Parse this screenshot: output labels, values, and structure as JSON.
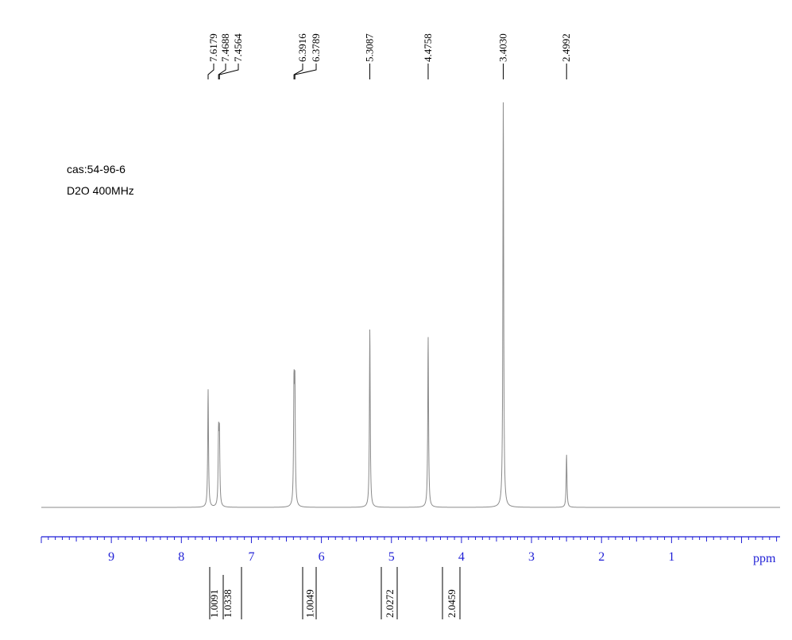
{
  "sample": {
    "cas": "cas:54-96-6",
    "conditions": "D2O 400MHz"
  },
  "chart_data": {
    "type": "line",
    "xlabel": "ppm",
    "xlim": [
      10.0,
      -0.55
    ],
    "x_ticks": [
      9,
      8,
      7,
      6,
      5,
      4,
      3,
      2,
      1
    ],
    "peak_labels": [
      "7.6179",
      "7.4688",
      "7.4564",
      "6.3916",
      "6.3789",
      "5.3087",
      "4.4758",
      "3.4030",
      "2.4992"
    ],
    "peaks": [
      {
        "shift": 7.6179,
        "height": 0.29
      },
      {
        "shift": 7.4688,
        "height": 0.17
      },
      {
        "shift": 7.4564,
        "height": 0.17
      },
      {
        "shift": 6.3916,
        "height": 0.28
      },
      {
        "shift": 6.3789,
        "height": 0.28
      },
      {
        "shift": 5.3087,
        "height": 0.44
      },
      {
        "shift": 4.4758,
        "height": 0.42
      },
      {
        "shift": 3.403,
        "height": 1.0
      },
      {
        "shift": 2.4992,
        "height": 0.13
      }
    ],
    "integrals": [
      {
        "from": 7.7,
        "to": 7.55,
        "label": "1.0091"
      },
      {
        "from": 7.55,
        "to": 7.3,
        "label": "1.0338"
      },
      {
        "from": 6.45,
        "to": 6.3,
        "label": "1.0049"
      },
      {
        "from": 5.4,
        "to": 5.2,
        "label": "2.0272"
      },
      {
        "from": 4.6,
        "to": 4.35,
        "label": "2.0459"
      }
    ],
    "colors": {
      "spectrum": "#8a8a8a",
      "axis": "#1f1fd6",
      "text": "#000000"
    }
  }
}
